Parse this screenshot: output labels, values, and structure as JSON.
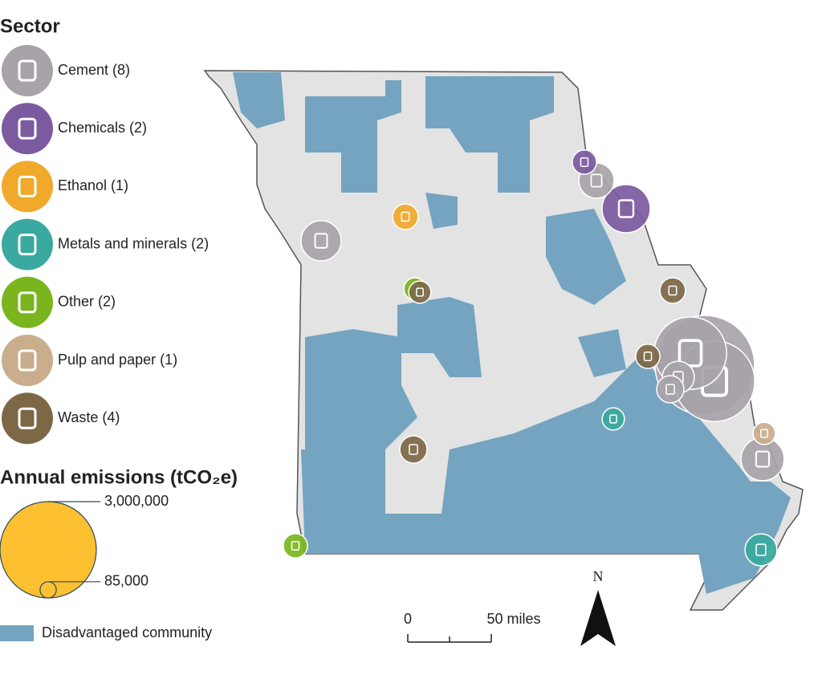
{
  "legend": {
    "title": "Sector",
    "sectors": [
      {
        "label": "Cement (8)",
        "color": "#a7a3a9",
        "emissions": [
          520000,
          400000,
          3200000,
          2100000,
          1700000,
          330000,
          240000,
          600000
        ]
      },
      {
        "label": "Chemicals (2)",
        "color": "#7b5aa0",
        "emissions": [
          190000,
          750000
        ]
      },
      {
        "label": "Ethanol (1)",
        "color": "#f0a92a",
        "emissions": [
          210000
        ]
      },
      {
        "label": "Metals and minerals (2)",
        "color": "#3aa99f",
        "emissions": [
          160000,
          330000
        ]
      },
      {
        "label": "Other (2)",
        "color": "#7ab51d",
        "emissions": [
          160000,
          190000
        ]
      },
      {
        "label": "Pulp and paper (1)",
        "color": "#c9ad8c",
        "emissions": [
          160000
        ]
      },
      {
        "label": "Waste (4)",
        "color": "#7c6845",
        "emissions": [
          210000,
          190000,
          160000,
          240000
        ]
      }
    ]
  },
  "size_legend": {
    "title": "Annual emissions (tCO₂e)",
    "entries": [
      {
        "value": 3000000,
        "label": "3,000,000"
      },
      {
        "value": 85000,
        "label": "85,000"
      }
    ]
  },
  "area_legend": {
    "label": "Disadvantaged community"
  },
  "scale_bar": {
    "start": "0",
    "end": "50 miles"
  },
  "north": "N"
}
